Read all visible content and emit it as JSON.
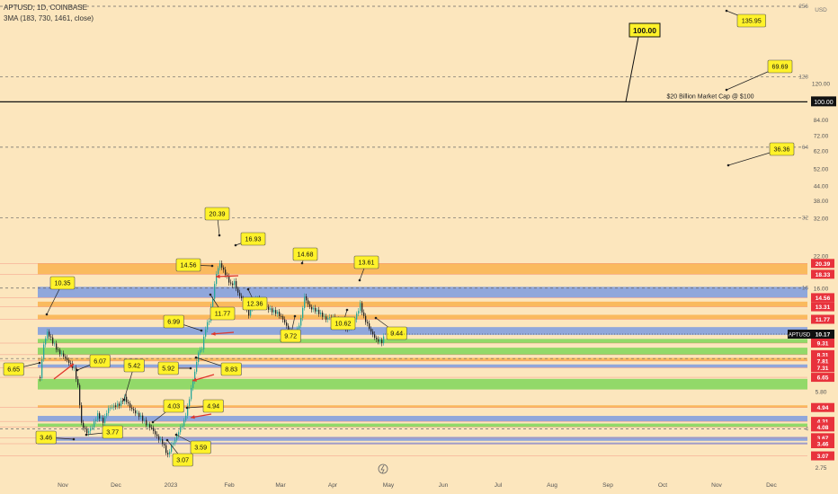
{
  "header": {
    "symbol_line": "APTUSD, 1D, COINBASE",
    "indicator_line": "3MA (183, 730, 1461, close)"
  },
  "chart_data": {
    "type": "candlestick",
    "scale": "log",
    "ylim": [
      2.75,
      256
    ],
    "currency_label": "USD",
    "y_ticks": [
      2.75,
      5.8,
      16.0,
      22.0,
      32.0,
      38.0,
      44.0,
      52.0,
      62.0,
      72.0,
      84.0,
      120.0
    ],
    "special_ticks": [
      {
        "value": 4,
        "label": "4"
      },
      {
        "value": 16,
        "label": "16"
      },
      {
        "value": 32,
        "label": "32"
      },
      {
        "value": 64,
        "label": "64"
      },
      {
        "value": 128,
        "label": "128"
      },
      {
        "value": 256,
        "label": "256"
      }
    ],
    "x_ticks": [
      "Nov",
      "Dec",
      "2023",
      "Feb",
      "Mar",
      "Apr",
      "May",
      "Jun",
      "Jul",
      "Aug",
      "Sep",
      "Oct",
      "Nov",
      "Dec"
    ],
    "last_price": {
      "label": "APTUSD",
      "value": "10.17",
      "y": 10.17
    },
    "level_badges": [
      {
        "text": "20.39",
        "y": 20.39
      },
      {
        "text": "18.33",
        "y": 18.33
      },
      {
        "text": "14.56",
        "y": 14.56
      },
      {
        "text": "13.31",
        "y": 13.31
      },
      {
        "text": "11.77",
        "y": 11.77
      },
      {
        "text": "9.31",
        "y": 9.31
      },
      {
        "text": "8.31",
        "y": 8.31
      },
      {
        "text": "7.81",
        "y": 7.81
      },
      {
        "text": "7.31",
        "y": 7.31
      },
      {
        "text": "6.65",
        "y": 6.65
      },
      {
        "text": "4.94",
        "y": 4.94
      },
      {
        "text": "4.31",
        "y": 4.31
      },
      {
        "text": "4.08",
        "y": 4.08
      },
      {
        "text": "3.67",
        "y": 3.67
      },
      {
        "text": "3.46",
        "y": 3.46
      },
      {
        "text": "3.07",
        "y": 3.07
      }
    ],
    "resistance_line": {
      "value": 100.0,
      "label": "100.00",
      "note": "$20 Billion Market Cap @ $100"
    },
    "dashed_levels": [
      256,
      128,
      64,
      32,
      16,
      8,
      4
    ],
    "zones": [
      {
        "from": 18.33,
        "to": 20.39,
        "color": "#f9b24e"
      },
      {
        "from": 14.56,
        "to": 16.2,
        "color": "#7d9be0"
      },
      {
        "from": 13.31,
        "to": 14.0,
        "color": "#f9b24e"
      },
      {
        "from": 11.77,
        "to": 12.3,
        "color": "#f9b24e"
      },
      {
        "from": 10.1,
        "to": 10.9,
        "color": "#7d9be0"
      },
      {
        "from": 9.31,
        "to": 9.7,
        "color": "#7fd65a"
      },
      {
        "from": 8.31,
        "to": 8.9,
        "color": "#7fd65a"
      },
      {
        "from": 7.81,
        "to": 8.05,
        "color": "#f9b24e"
      },
      {
        "from": 7.31,
        "to": 7.55,
        "color": "#7d9be0"
      },
      {
        "from": 5.9,
        "to": 6.55,
        "color": "#7fd65a"
      },
      {
        "from": 4.94,
        "to": 5.05,
        "color": "#f9b24e"
      },
      {
        "from": 4.31,
        "to": 4.55,
        "color": "#7d9be0"
      },
      {
        "from": 4.08,
        "to": 4.22,
        "color": "#7fd65a"
      },
      {
        "from": 3.56,
        "to": 3.7,
        "color": "#7d9be0"
      },
      {
        "from": 3.44,
        "to": 3.5,
        "color": "#7d9be0"
      }
    ],
    "annotations": [
      {
        "text": "6.65"
      },
      {
        "text": "10.35"
      },
      {
        "text": "6.07"
      },
      {
        "text": "5.42"
      },
      {
        "text": "3.77"
      },
      {
        "text": "3.46"
      },
      {
        "text": "4.03"
      },
      {
        "text": "3.07"
      },
      {
        "text": "3.59"
      },
      {
        "text": "4.94"
      },
      {
        "text": "5.92"
      },
      {
        "text": "8.83"
      },
      {
        "text": "6.99"
      },
      {
        "text": "14.56"
      },
      {
        "text": "20.39"
      },
      {
        "text": "11.77"
      },
      {
        "text": "16.93"
      },
      {
        "text": "12.36"
      },
      {
        "text": "14.68"
      },
      {
        "text": "9.72"
      },
      {
        "text": "13.61"
      },
      {
        "text": "10.62"
      },
      {
        "text": "9.44"
      },
      {
        "text": "135.95"
      },
      {
        "text": "69.69"
      },
      {
        "text": "36.36"
      }
    ],
    "colors": {
      "background": "#fce6bd",
      "up": "#26a69a",
      "down": "#222222",
      "badge_red": "#e8323c",
      "annotation": "#fff22a",
      "arrow": "#e0352b"
    }
  }
}
